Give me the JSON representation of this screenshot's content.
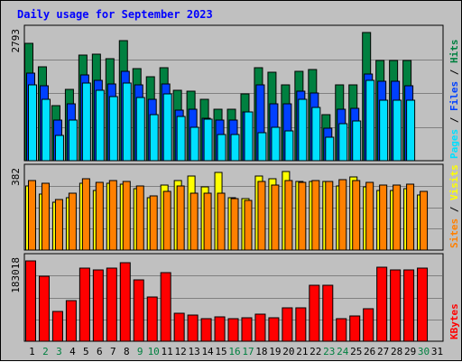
{
  "chart_data": {
    "type": "bar",
    "title": "Daily usage for September 2023",
    "days": [
      "1",
      "2",
      "3",
      "4",
      "5",
      "6",
      "7",
      "8",
      "9",
      "10",
      "11",
      "12",
      "13",
      "14",
      "15",
      "16",
      "17",
      "18",
      "19",
      "20",
      "21",
      "22",
      "23",
      "24",
      "25",
      "26",
      "27",
      "28",
      "29",
      "30",
      "31"
    ],
    "weekend_days": [
      "2",
      "3",
      "9",
      "10",
      "16",
      "17",
      "23",
      "24",
      "30"
    ],
    "max_labels": {
      "hits": "2793",
      "sites": "382",
      "kbytes": "183018"
    },
    "axis_labels": {
      "top": [
        {
          "text": "Pages",
          "color": "#00e0ff"
        },
        {
          "text": " / ",
          "color": "#000000"
        },
        {
          "text": "Files",
          "color": "#0040ff"
        },
        {
          "text": " / ",
          "color": "#000000"
        },
        {
          "text": "Hits",
          "color": "#008040"
        }
      ],
      "middle": [
        {
          "text": "Sites",
          "color": "#ff8000"
        },
        {
          "text": " / ",
          "color": "#000000"
        },
        {
          "text": "Visits",
          "color": "#ffff00"
        }
      ],
      "bottom": [
        {
          "text": "KBytes",
          "color": "#ff0000"
        }
      ]
    },
    "colors": {
      "hits": "#008040",
      "files": "#0040ff",
      "pages": "#00e0ff",
      "visits": "#ffff00",
      "sites": "#ff8000",
      "kbytes": "#ff0000",
      "weekday_label": "#000000",
      "weekend_label": "#008040"
    },
    "series": {
      "hits": [
        2532,
        2013,
        1191,
        1542,
        2278,
        2287,
        2193,
        2583,
        1972,
        1806,
        1996,
        1514,
        1490,
        1323,
        1114,
        1110,
        1442,
        2003,
        1906,
        1635,
        1932,
        1964,
        1000,
        1641,
        1641,
        2758,
        2151,
        2151,
        2151,
        0,
        0
      ],
      "files": [
        1883,
        1605,
        876,
        1231,
        1838,
        1730,
        1648,
        1922,
        1630,
        1330,
        1656,
        1094,
        1106,
        910,
        876,
        870,
        1052,
        1630,
        1230,
        1230,
        1497,
        1454,
        700,
        1114,
        1133,
        1866,
        1712,
        1712,
        1603,
        0,
        0
      ],
      "pages": [
        1636,
        1330,
        540,
        876,
        1675,
        1515,
        1379,
        1673,
        1352,
        1000,
        1438,
        947,
        723,
        893,
        560,
        564,
        1052,
        597,
        723,
        641,
        1330,
        1144,
        510,
        790,
        863,
        1730,
        1309,
        1309,
        1309,
        0,
        0
      ],
      "sites": [
        336,
        324,
        247,
        275,
        344,
        327,
        336,
        335,
        313,
        262,
        285,
        310,
        275,
        275,
        275,
        249,
        242,
        335,
        315,
        336,
        329,
        337,
        335,
        340,
        336,
        327,
        315,
        315,
        320,
        286,
        0
      ],
      "visits": [
        309,
        270,
        230,
        253,
        323,
        290,
        325,
        321,
        299,
        256,
        314,
        337,
        360,
        307,
        376,
        254,
        251,
        360,
        345,
        381,
        332,
        335,
        331,
        313,
        355,
        306,
        290,
        290,
        297,
        265,
        0
      ],
      "kbytes": [
        183018,
        148000,
        68000,
        93000,
        167000,
        163000,
        166000,
        179000,
        139000,
        101000,
        156000,
        64000,
        59000,
        52000,
        56000,
        52000,
        54000,
        62000,
        54000,
        77000,
        77000,
        127000,
        127000,
        52000,
        58000,
        75000,
        169000,
        163000,
        163000,
        166000,
        0
      ]
    }
  }
}
